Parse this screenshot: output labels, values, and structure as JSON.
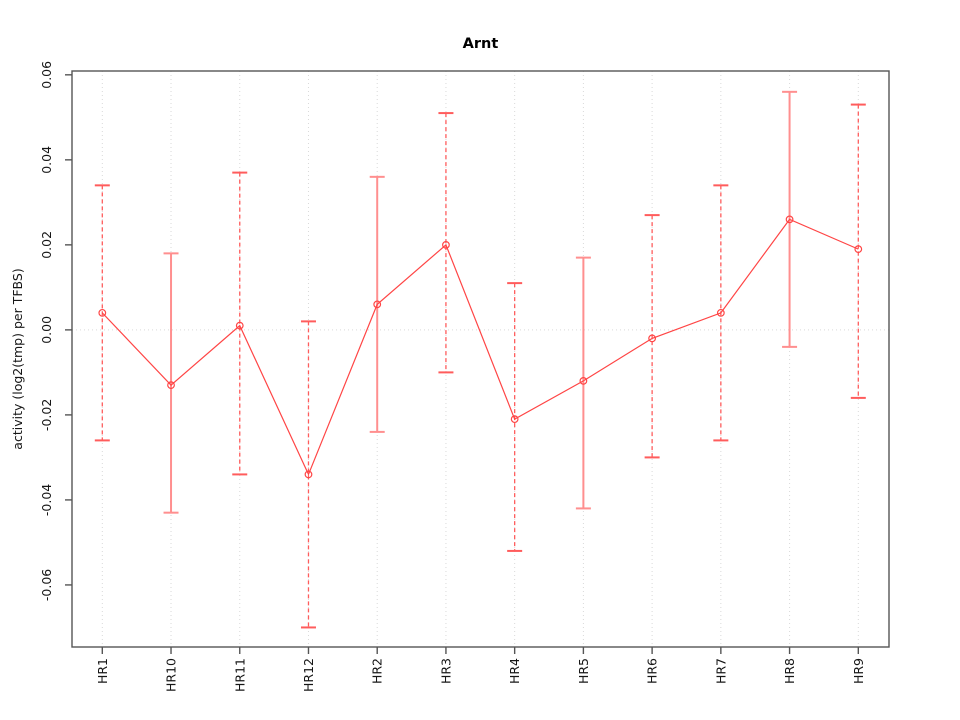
{
  "page": {
    "background": "#ffffff"
  },
  "chart_data": {
    "type": "line",
    "title": "Arnt",
    "xlabel": "",
    "ylabel": "activity (log2(tmp) per TFBS)",
    "categories": [
      "HR1",
      "HR10",
      "HR11",
      "HR12",
      "HR2",
      "HR3",
      "HR4",
      "HR5",
      "HR6",
      "HR7",
      "HR8",
      "HR9"
    ],
    "series": [
      {
        "name": "activity",
        "values": [
          0.004,
          -0.013,
          0.001,
          -0.034,
          0.006,
          0.02,
          -0.021,
          -0.012,
          -0.002,
          0.004,
          0.026,
          0.019
        ],
        "error_upper": [
          0.034,
          0.018,
          0.037,
          0.002,
          0.036,
          0.051,
          0.011,
          0.017,
          0.027,
          0.034,
          0.056,
          0.053
        ],
        "error_lower": [
          -0.026,
          -0.043,
          -0.034,
          -0.07,
          -0.024,
          -0.01,
          -0.052,
          -0.042,
          -0.03,
          -0.026,
          -0.004,
          -0.016
        ],
        "errorbar_line_styles": [
          "dashed",
          "solid",
          "dashed",
          "dashed",
          "solid",
          "dashed",
          "dashed",
          "solid",
          "dashed",
          "dashed",
          "solid",
          "dashed"
        ]
      }
    ],
    "ytick_labels": [
      "0.06",
      "0.04",
      "0.02",
      "0.00",
      "-0.02",
      "-0.04",
      "-0.06"
    ],
    "ytick_values": [
      0.06,
      0.04,
      0.02,
      0.0,
      -0.02,
      -0.04,
      -0.06
    ],
    "ylim": [
      -0.0746,
      0.0609
    ],
    "zero_line_value": 0.0,
    "grid": {
      "vertical_at_categories": true,
      "horizontal_at_zero": true,
      "style": "dotted"
    },
    "legend_position": "none",
    "marker": "open-circle",
    "colors": {
      "series_line": "#ff4545",
      "marker_stroke": "#ff4545",
      "errorbar_solid": "#ff8f8f",
      "errorbar_dashed": "#ff5c5c",
      "grid": "#d9d9d9",
      "box": "#555555",
      "text": "#161616",
      "background": "#ffffff"
    }
  }
}
